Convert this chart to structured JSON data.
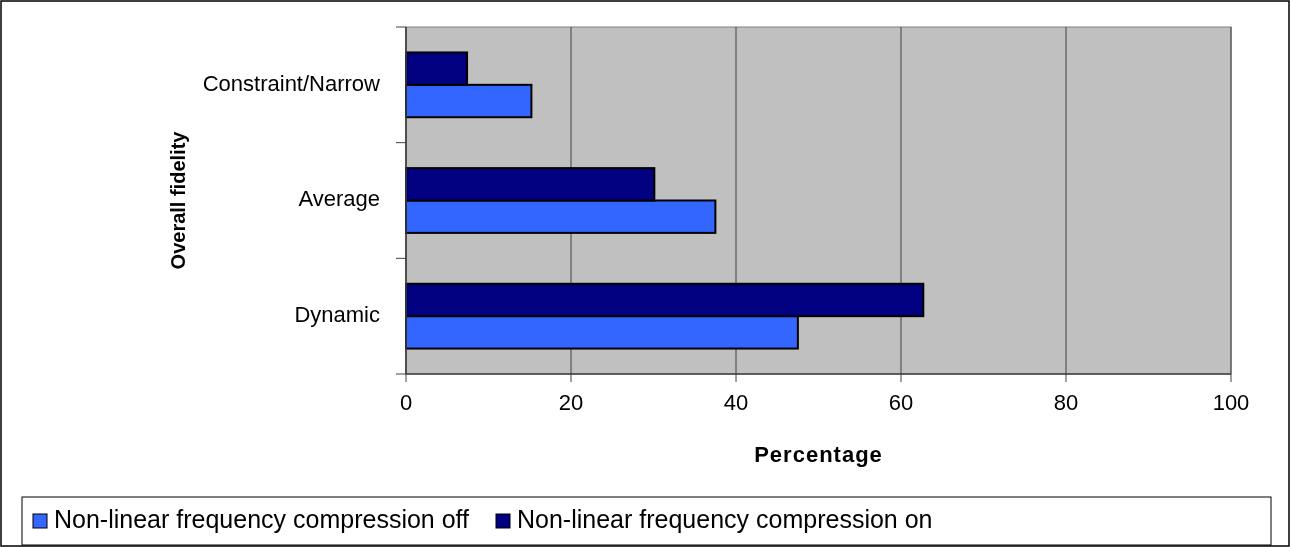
{
  "chart_data": {
    "type": "bar",
    "orientation": "horizontal",
    "xlabel": "Percentage",
    "ylabel": "Overall fidelity",
    "categories": [
      "Constraint/Narrow",
      "Average",
      "Dynamic"
    ],
    "series": [
      {
        "name": "Non-linear frequency compression off",
        "color": "#3366ff",
        "values": [
          15.2,
          37.5,
          47.5
        ]
      },
      {
        "name": "Non-linear frequency compression on",
        "color": "#000080",
        "values": [
          7.4,
          30.1,
          62.7
        ]
      }
    ],
    "xlim": [
      0,
      100
    ],
    "xticks": [
      0,
      20,
      40,
      60,
      80,
      100
    ],
    "grid": "x",
    "legend": "bottom"
  }
}
